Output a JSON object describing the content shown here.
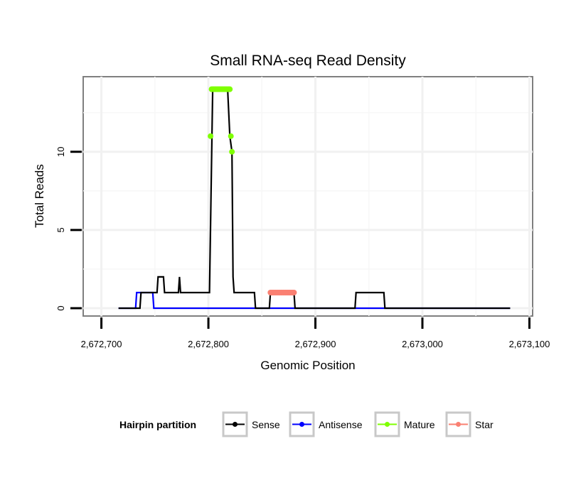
{
  "chart_data": {
    "type": "line",
    "title": "Small RNA-seq Read Density",
    "xlabel": "Genomic Position",
    "ylabel": "Total Reads",
    "xlim": [
      2672683,
      2673103
    ],
    "ylim": [
      -0.5,
      14.8
    ],
    "x_ticks": [
      2672700,
      2672800,
      2672900,
      2673000,
      2673100
    ],
    "x_tick_labels": [
      "2,672,700",
      "2,672,800",
      "2,672,900",
      "2,673,000",
      "2,673,100"
    ],
    "y_ticks": [
      0,
      5,
      10
    ],
    "y_tick_labels": [
      "0",
      "5",
      "10"
    ],
    "grid": true,
    "legend": {
      "title": "Hairpin partition",
      "position": "bottom",
      "entries": [
        {
          "name": "Sense",
          "color": "#000000"
        },
        {
          "name": "Antisense",
          "color": "#0000ff"
        },
        {
          "name": "Mature",
          "color": "#7fff00"
        },
        {
          "name": "Star",
          "color": "#fa8072"
        }
      ]
    },
    "series": [
      {
        "name": "Sense",
        "color": "#000000",
        "x": [
          2672716,
          2672736,
          2672737,
          2672752,
          2672753,
          2672758,
          2672759,
          2672772,
          2672773,
          2672774,
          2672801,
          2672804,
          2672818,
          2672820,
          2672822,
          2672823,
          2672824,
          2672843,
          2672844,
          2672857,
          2672858,
          2672880,
          2672881,
          2672937,
          2672938,
          2672964,
          2672965,
          2673082
        ],
        "y": [
          0,
          0,
          1,
          1,
          2,
          2,
          1,
          1,
          2,
          1,
          1,
          14,
          14,
          11,
          10,
          2,
          1,
          1,
          0,
          0,
          1,
          1,
          0,
          0,
          1,
          1,
          0,
          0
        ]
      },
      {
        "name": "Antisense",
        "color": "#0000ff",
        "x": [
          2672716,
          2672732,
          2672733,
          2672748,
          2672749,
          2673082
        ],
        "y": [
          0,
          0,
          1,
          1,
          0,
          0
        ]
      },
      {
        "name": "Mature",
        "color": "#7fff00",
        "x": [
          2672802,
          2672803,
          2672804,
          2672805,
          2672806,
          2672807,
          2672808,
          2672809,
          2672810,
          2672811,
          2672812,
          2672813,
          2672814,
          2672815,
          2672816,
          2672817,
          2672818,
          2672819,
          2672820,
          2672821,
          2672822
        ],
        "y": [
          11,
          14,
          14,
          14,
          14,
          14,
          14,
          14,
          14,
          14,
          14,
          14,
          14,
          14,
          14,
          14,
          14,
          14,
          14,
          11,
          10
        ]
      },
      {
        "name": "Star",
        "color": "#fa8072",
        "x": [
          2672858,
          2672859,
          2672860,
          2672861,
          2672862,
          2672863,
          2672864,
          2672865,
          2672866,
          2672867,
          2672868,
          2672869,
          2672870,
          2672871,
          2672872,
          2672873,
          2672874,
          2672875,
          2672876,
          2672877,
          2672878,
          2672879,
          2672880
        ],
        "y": [
          1,
          1,
          1,
          1,
          1,
          1,
          1,
          1,
          1,
          1,
          1,
          1,
          1,
          1,
          1,
          1,
          1,
          1,
          1,
          1,
          1,
          1,
          1
        ]
      }
    ]
  }
}
